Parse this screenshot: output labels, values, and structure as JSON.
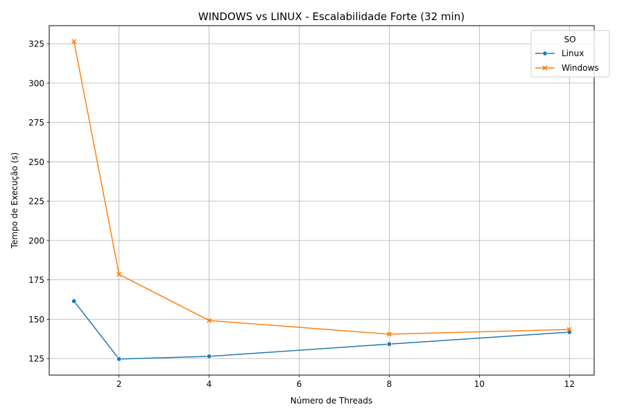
{
  "chart_data": {
    "type": "line",
    "title": "WINDOWS vs LINUX - Escalabilidade Forte (32 min)",
    "xlabel": "Número de Threads",
    "ylabel": "Tempo de Execução (s)",
    "xlim": [
      0.45,
      12.55
    ],
    "ylim": [
      114.5,
      336.5
    ],
    "x_ticks": [
      2,
      4,
      6,
      8,
      10,
      12
    ],
    "y_ticks": [
      125,
      150,
      175,
      200,
      225,
      250,
      275,
      300,
      325
    ],
    "grid": true,
    "legend": {
      "title": "SO",
      "position": "top-right"
    },
    "series": [
      {
        "name": "Linux",
        "color": "#1f77b4",
        "marker": "circle",
        "x": [
          1,
          2,
          4,
          8,
          12
        ],
        "y": [
          161.5,
          124.7,
          126.4,
          134.2,
          141.8
        ]
      },
      {
        "name": "Windows",
        "color": "#ff7f0e",
        "marker": "x",
        "x": [
          1,
          2,
          4,
          8,
          12
        ],
        "y": [
          326.5,
          178.5,
          149.2,
          140.5,
          143.5
        ]
      }
    ]
  }
}
